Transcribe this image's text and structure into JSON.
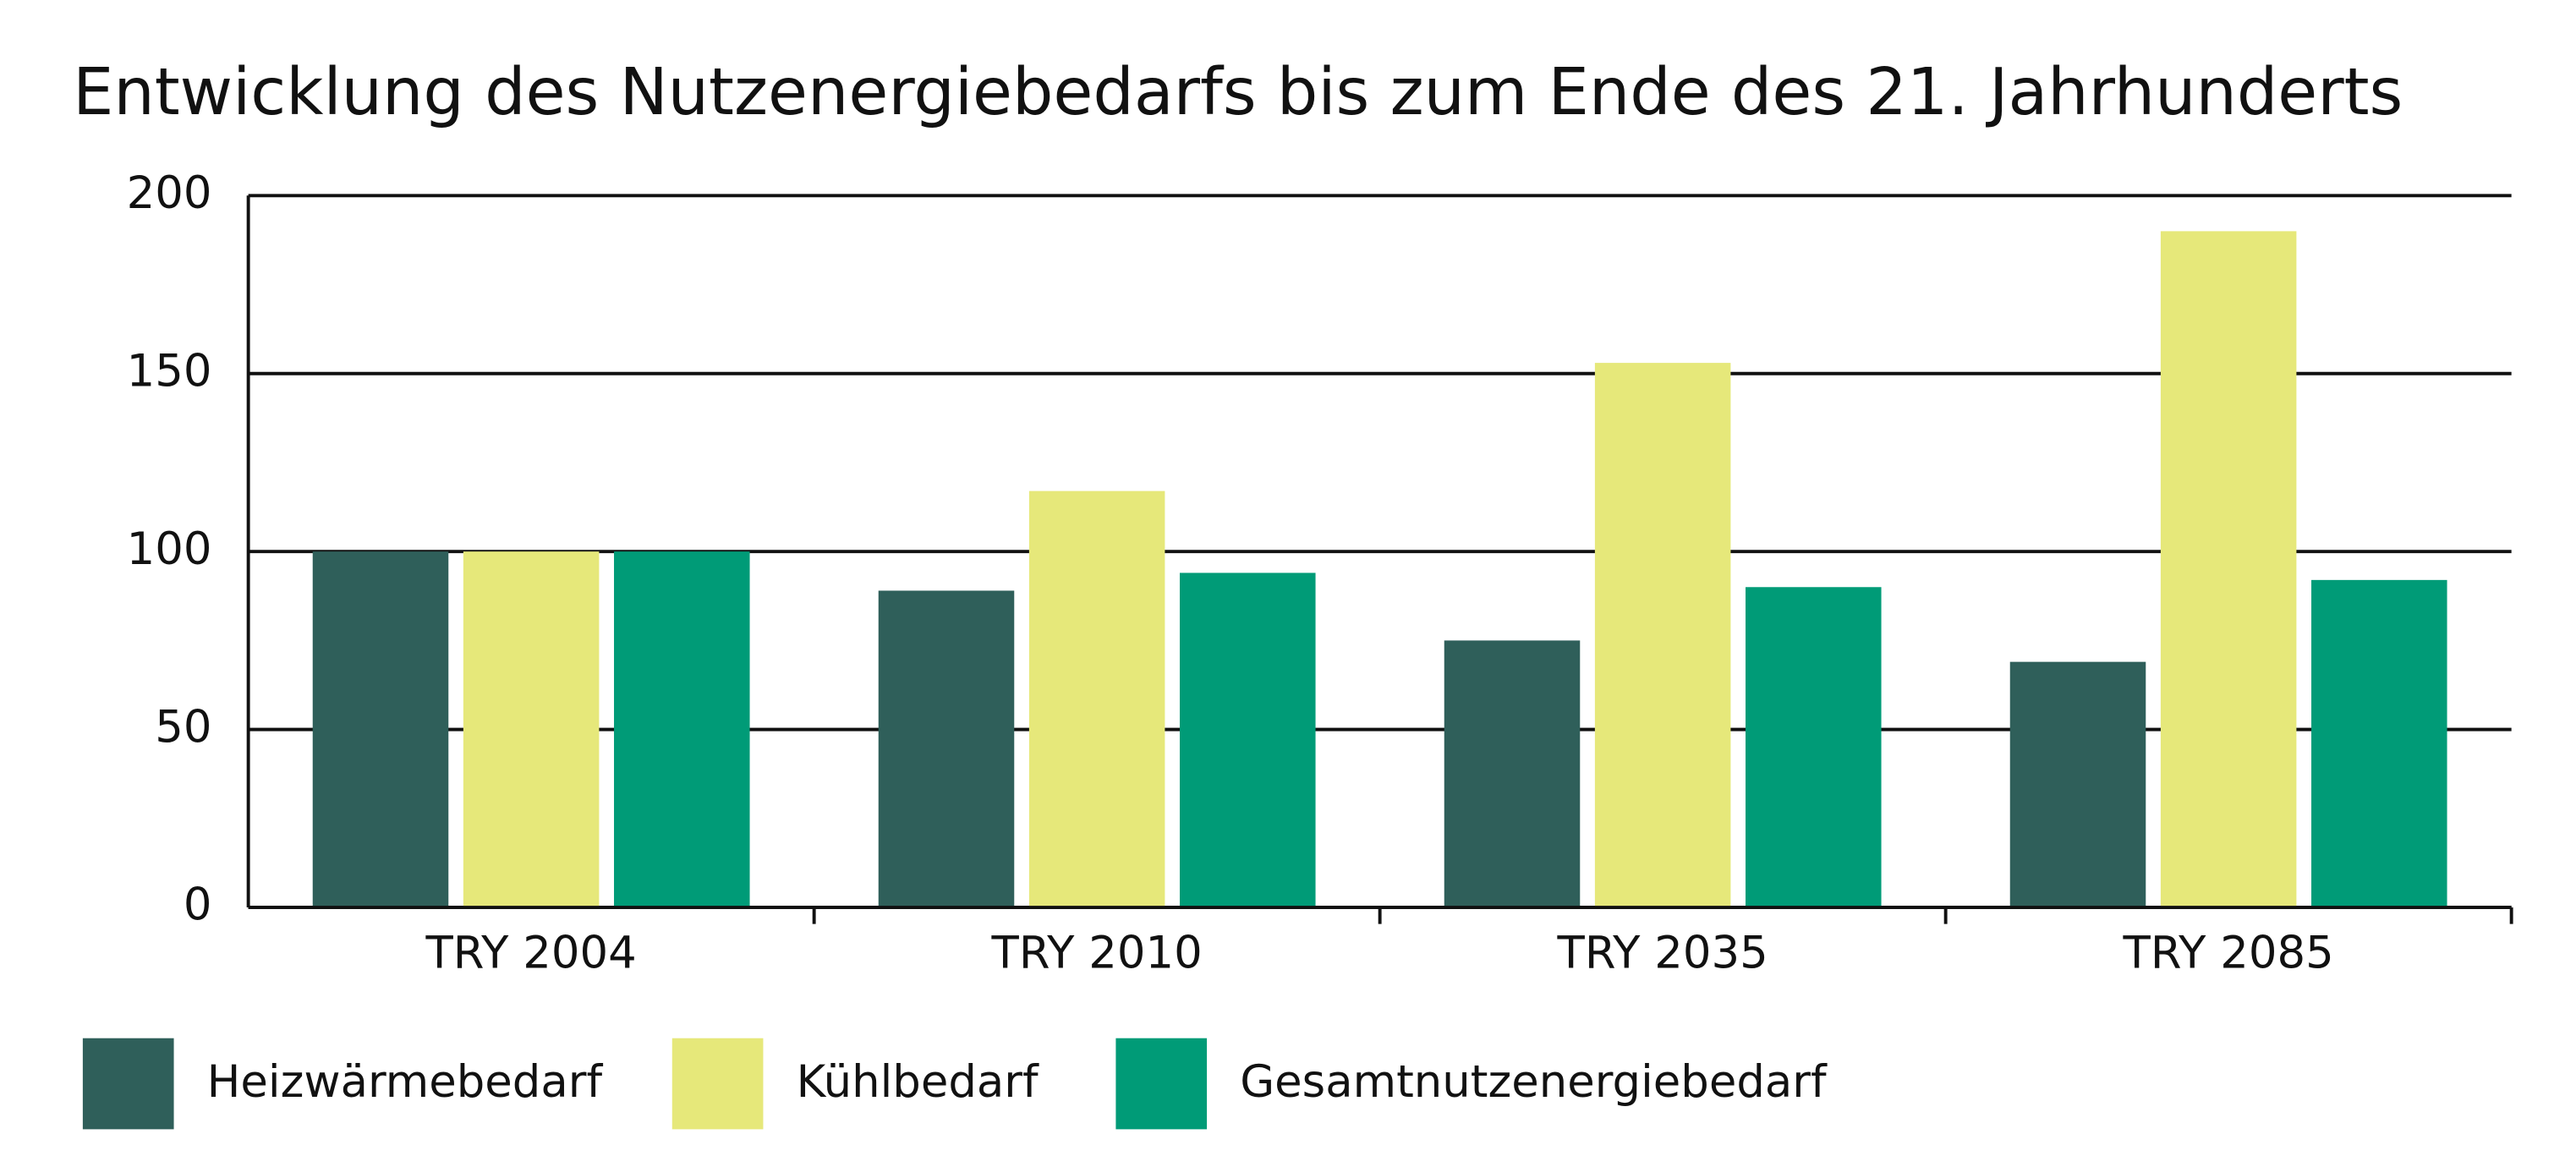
{
  "chart_data": {
    "type": "bar",
    "title": "Entwicklung des Nutzenergiebedarfs bis zum Ende des 21. Jahrhunderts",
    "categories": [
      "TRY 2004",
      "TRY 2010",
      "TRY 2035",
      "TRY 2085"
    ],
    "series": [
      {
        "name": "Heizwärmebedarf",
        "color": "#2f5f5a",
        "values": [
          100,
          89,
          75,
          69
        ]
      },
      {
        "name": "Kühlbedarf",
        "color": "#e6e87a",
        "values": [
          100,
          117,
          153,
          190
        ]
      },
      {
        "name": "Gesamtnutzenergiebedarf",
        "color": "#009b77",
        "values": [
          100,
          94,
          90,
          92
        ]
      }
    ],
    "ylim": [
      0,
      200
    ],
    "yticks": [
      0,
      50,
      100,
      150,
      200
    ],
    "grid": true,
    "legend": "bottom"
  }
}
